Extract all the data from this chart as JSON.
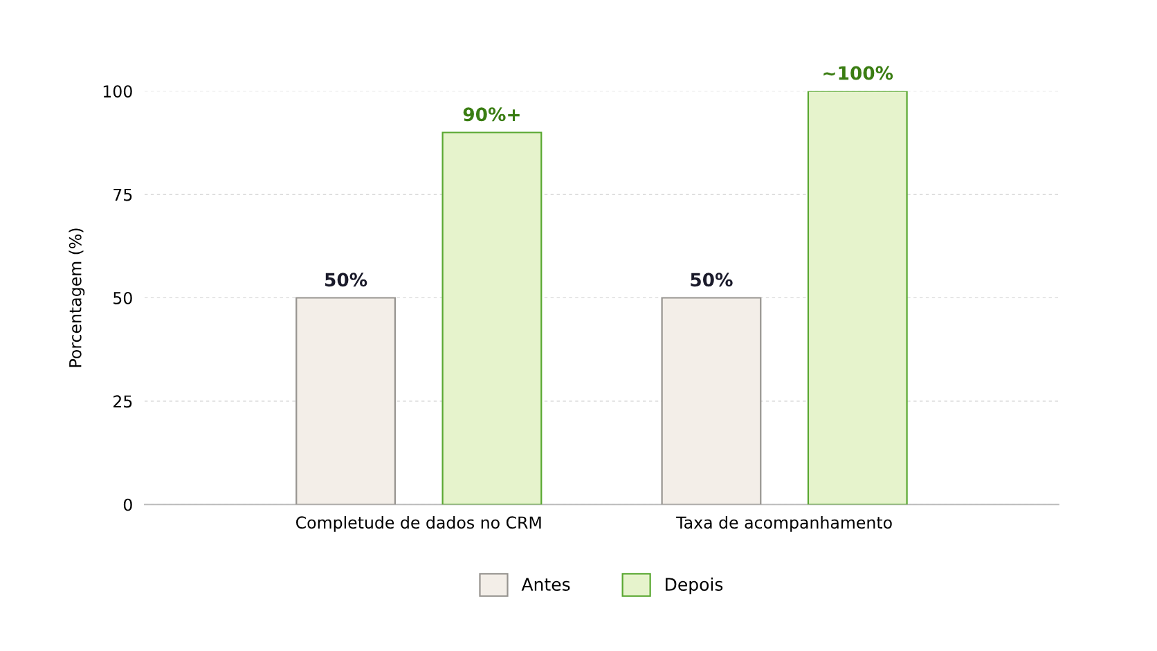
{
  "chart_data": {
    "type": "bar",
    "ylabel": "Porcentagem (%)",
    "categories": [
      "Completude de dados no CRM",
      "Taxa de acompanhamento"
    ],
    "series": [
      {
        "name": "Antes",
        "color": "#f3eee8",
        "values": [
          50,
          50
        ],
        "value_labels": [
          "50%",
          "50%"
        ]
      },
      {
        "name": "Depois",
        "color": "#e6f3cc",
        "values": [
          90,
          100
        ],
        "value_labels": [
          "90%+",
          "~100%"
        ]
      }
    ],
    "ylim": [
      0,
      100
    ],
    "yticks": [
      0,
      25,
      50,
      75,
      100
    ],
    "grid": "y",
    "legend": "bottom"
  }
}
